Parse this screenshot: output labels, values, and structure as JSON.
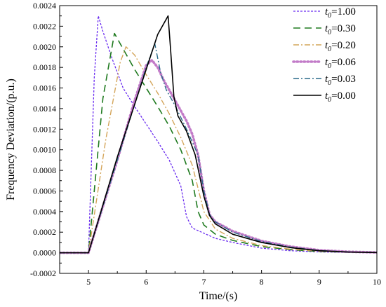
{
  "chart_data": {
    "type": "line",
    "title": "",
    "xlabel": "Time/(s)",
    "ylabel": "Frequency Deviation/(p.u.)",
    "xlim": [
      4.5,
      10
    ],
    "ylim": [
      -0.0002,
      0.0024
    ],
    "xticks": [
      "5",
      "6",
      "7",
      "8",
      "9",
      "10"
    ],
    "xtick_values": [
      5,
      6,
      7,
      8,
      9,
      10
    ],
    "yticks": [
      "-0.0002",
      "0.0000",
      "0.0002",
      "0.0004",
      "0.0006",
      "0.0008",
      "0.0010",
      "0.0012",
      "0.0014",
      "0.0016",
      "0.0018",
      "0.0020",
      "0.0022",
      "0.0024"
    ],
    "ytick_values": [
      -0.0002,
      0,
      0.0002,
      0.0004,
      0.0006,
      0.0008,
      0.001,
      0.0012,
      0.0014,
      0.0016,
      0.0018,
      0.002,
      0.0022,
      0.0024
    ],
    "grid": false,
    "legend_position": "top-right",
    "series": [
      {
        "name": "t0=1.00",
        "legend_var": "t",
        "legend_sub": "0",
        "legend_value": "=1.00",
        "color": "#6a2cf0",
        "dash": "3,2",
        "stroke_width": 1.3,
        "x": [
          4.5,
          5.0,
          5.1,
          5.17,
          5.25,
          5.4,
          5.6,
          5.8,
          6.0,
          6.2,
          6.4,
          6.6,
          6.7,
          6.8,
          7.0,
          7.2,
          7.5,
          8.0,
          8.5,
          9.0,
          9.5,
          10.0
        ],
        "y": [
          0,
          0,
          0.0017,
          0.0023,
          0.00215,
          0.0019,
          0.0016,
          0.00142,
          0.00125,
          0.00108,
          0.0009,
          0.00065,
          0.00035,
          0.00024,
          0.00019,
          0.00014,
          0.0001,
          4.5e-05,
          2e-05,
          8e-06,
          3e-06,
          0
        ]
      },
      {
        "name": "t0=0.30",
        "legend_var": "t",
        "legend_sub": "0",
        "legend_value": "=0.30",
        "color": "#1f7a1f",
        "dash": "10,6",
        "stroke_width": 1.6,
        "x": [
          4.5,
          5.0,
          5.25,
          5.45,
          5.6,
          5.8,
          6.0,
          6.2,
          6.4,
          6.6,
          6.8,
          6.9,
          7.0,
          7.2,
          7.5,
          8.0,
          8.5,
          9.0,
          9.5,
          10.0
        ],
        "y": [
          0,
          0,
          0.0015,
          0.00213,
          0.00198,
          0.00178,
          0.0016,
          0.00142,
          0.00123,
          0.001,
          0.0007,
          0.0004,
          0.00027,
          0.00018,
          0.00012,
          6e-05,
          3e-05,
          1.2e-05,
          5e-06,
          1e-06
        ]
      },
      {
        "name": "t0=0.20",
        "legend_var": "t",
        "legend_sub": "0",
        "legend_value": "=0.20",
        "color": "#d4a55a",
        "dash": "8,3,2,3",
        "stroke_width": 1.4,
        "x": [
          4.5,
          5.0,
          5.3,
          5.55,
          5.65,
          5.8,
          6.0,
          6.2,
          6.4,
          6.6,
          6.8,
          7.0,
          7.2,
          7.5,
          8.0,
          8.5,
          9.0,
          9.5,
          10.0
        ],
        "y": [
          0,
          0,
          0.0011,
          0.00185,
          0.002,
          0.00192,
          0.00173,
          0.00155,
          0.00135,
          0.00112,
          0.00085,
          0.0004,
          0.00023,
          0.00014,
          7e-05,
          3.5e-05,
          1.5e-05,
          6e-06,
          2e-06
        ]
      },
      {
        "name": "t0=0.06",
        "legend_var": "t",
        "legend_sub": "0",
        "legend_value": "=0.06",
        "color": "#c27bc8",
        "dash": "1.5,3.5",
        "stroke_width": 3.6,
        "x": [
          4.5,
          5.0,
          5.5,
          5.8,
          6.0,
          6.1,
          6.2,
          6.3,
          6.5,
          6.6,
          6.7,
          6.8,
          6.9,
          7.0,
          7.1,
          7.2,
          7.5,
          8.0,
          8.5,
          9.0,
          9.5,
          10.0
        ],
        "y": [
          0,
          0,
          0.0009,
          0.00148,
          0.00182,
          0.00187,
          0.0018,
          0.00168,
          0.00148,
          0.00138,
          0.00128,
          0.00115,
          0.00095,
          0.0006,
          0.00037,
          0.0003,
          0.00021,
          0.000115,
          6e-05,
          2.5e-05,
          1e-05,
          3e-06
        ]
      },
      {
        "name": "t0=0.03",
        "legend_var": "t",
        "legend_sub": "0",
        "legend_value": "=0.03",
        "color": "#2a6a8a",
        "dash": "8,3,2,3",
        "stroke_width": 1.4,
        "x": [
          4.5,
          5.0,
          5.5,
          6.0,
          6.15,
          6.25,
          6.35,
          6.5,
          6.7,
          6.9,
          7.0,
          7.1,
          7.2,
          7.5,
          8.0,
          8.5,
          9.0,
          9.5,
          10.0
        ],
        "y": [
          0,
          0,
          0.0009,
          0.0018,
          0.00203,
          0.00175,
          0.00158,
          0.00143,
          0.0012,
          0.00095,
          0.0006,
          0.00037,
          0.0003,
          0.0002,
          0.00011,
          5.5e-05,
          2.2e-05,
          8e-06,
          2e-06
        ]
      },
      {
        "name": "t0=0.00",
        "legend_var": "t",
        "legend_sub": "0",
        "legend_value": "=0.00",
        "color": "#000000",
        "dash": "",
        "stroke_width": 1.6,
        "x": [
          4.5,
          5.0,
          5.5,
          6.0,
          6.2,
          6.38,
          6.42,
          6.48,
          6.55,
          6.7,
          6.85,
          7.0,
          7.1,
          7.2,
          7.5,
          8.0,
          8.5,
          9.0,
          9.5,
          10.0
        ],
        "y": [
          0,
          0,
          0.00093,
          0.00178,
          0.00212,
          0.0023,
          0.002,
          0.00152,
          0.00133,
          0.00118,
          0.00095,
          0.00055,
          0.00036,
          0.00028,
          0.00018,
          0.0001,
          5e-05,
          2e-05,
          7e-06,
          2e-06
        ]
      }
    ]
  }
}
